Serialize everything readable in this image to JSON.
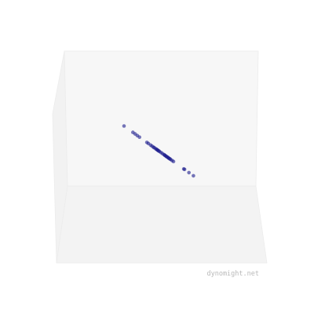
{
  "watermark": "dynomight.net",
  "colors": {
    "back_wall": "#f7f7f7",
    "left_wall": "#f2f2f2",
    "floor": "#f3f3f3",
    "edge": "#ececec",
    "point": "#1a1a8c"
  },
  "chart_data": {
    "type": "scatter",
    "projection": "3d",
    "title": "",
    "xlabel": "",
    "ylabel": "",
    "grid": false,
    "points": [
      {
        "t": 0.0
      },
      {
        "t": 0.12
      },
      {
        "t": 0.15
      },
      {
        "t": 0.18
      },
      {
        "t": 0.21
      },
      {
        "t": 0.31
      },
      {
        "t": 0.33
      },
      {
        "t": 0.36
      },
      {
        "t": 0.38
      },
      {
        "t": 0.4
      },
      {
        "t": 0.41
      },
      {
        "t": 0.43
      },
      {
        "t": 0.44
      },
      {
        "t": 0.45
      },
      {
        "t": 0.46
      },
      {
        "t": 0.47
      },
      {
        "t": 0.48
      },
      {
        "t": 0.5
      },
      {
        "t": 0.52
      },
      {
        "t": 0.54
      },
      {
        "t": 0.55
      },
      {
        "t": 0.56
      },
      {
        "t": 0.57
      },
      {
        "t": 0.58
      },
      {
        "t": 0.59
      },
      {
        "t": 0.6
      },
      {
        "t": 0.61
      },
      {
        "t": 0.62
      },
      {
        "t": 0.63
      },
      {
        "t": 0.65
      },
      {
        "t": 0.67
      },
      {
        "t": 0.81
      },
      {
        "t": 0.82
      },
      {
        "t": 0.88
      },
      {
        "t": 0.94
      }
    ]
  }
}
